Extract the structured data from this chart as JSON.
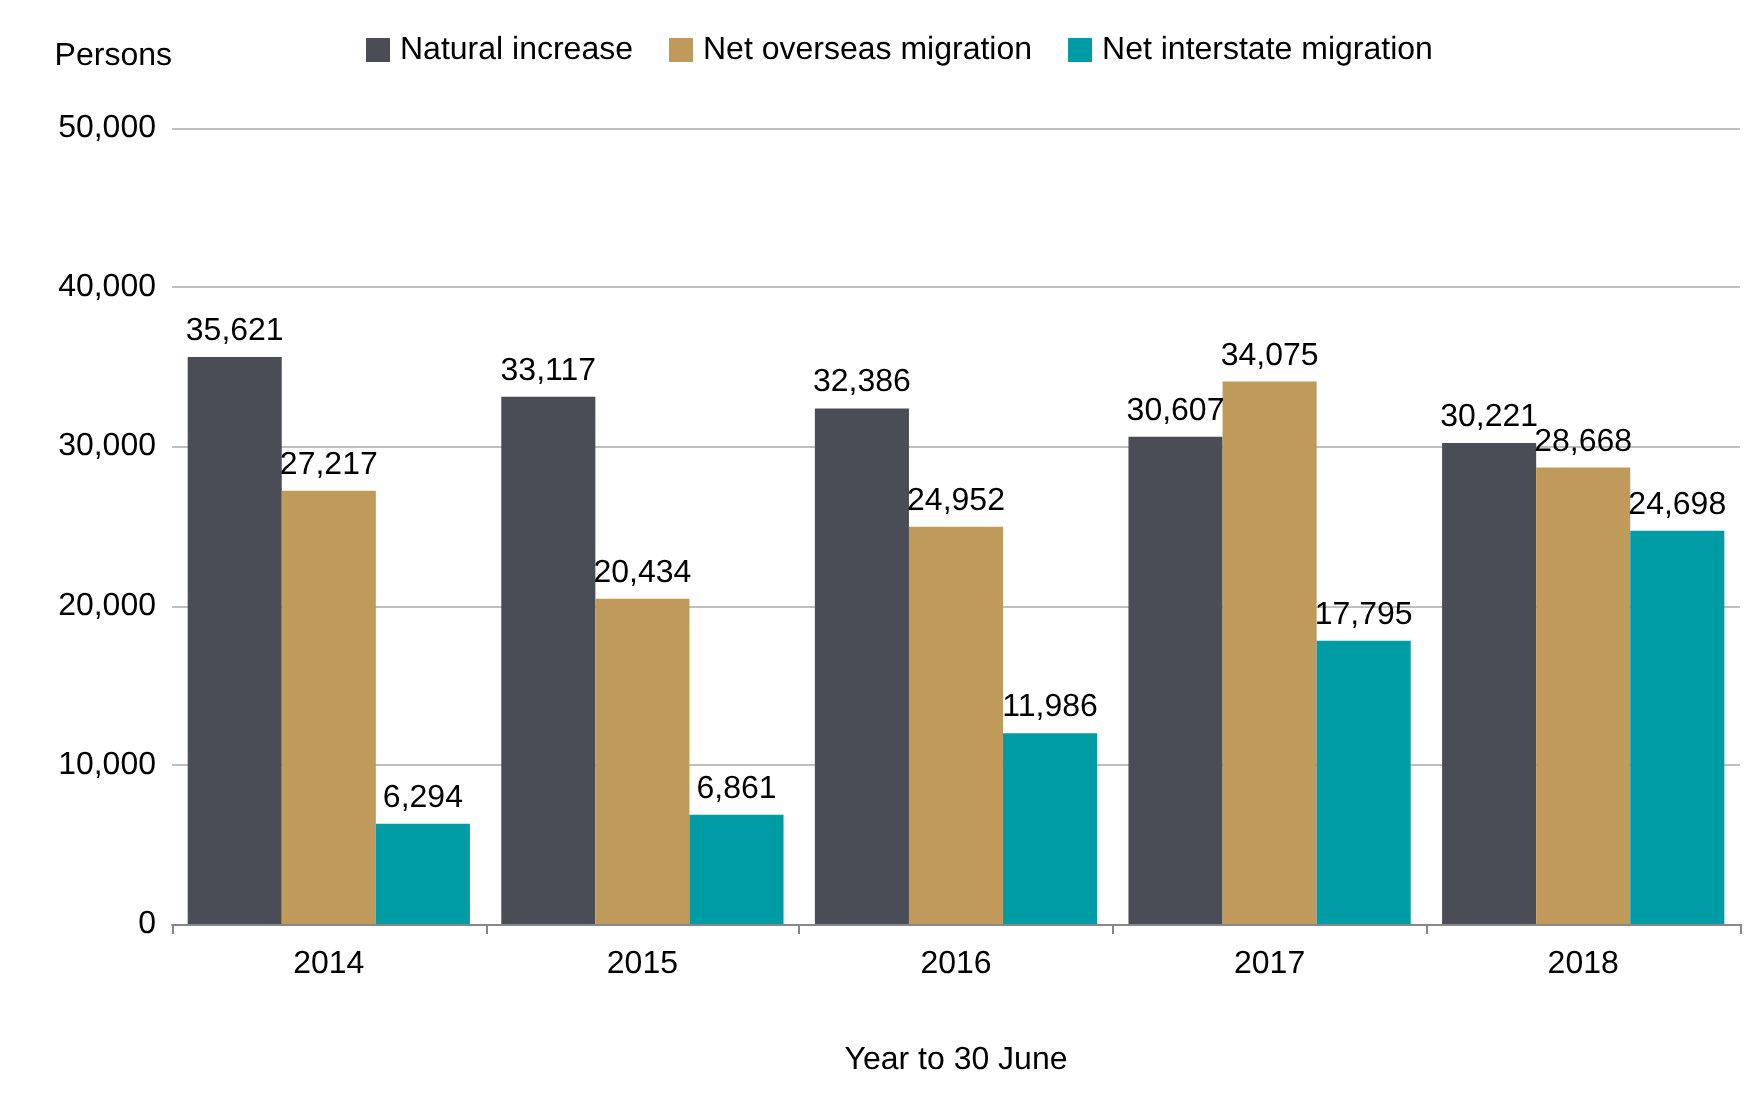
{
  "chart_data": {
    "type": "bar",
    "ylabel": "Persons",
    "xlabel": "Year to 30 June",
    "categories": [
      "2014",
      "2015",
      "2016",
      "2017",
      "2018"
    ],
    "series": [
      {
        "name": "Natural increase",
        "color": "#4a4d55",
        "values": [
          35621,
          33117,
          32386,
          30607,
          30221
        ],
        "value_labels": [
          "35,621",
          "33,117",
          "32,386",
          "30,607",
          "30,221"
        ]
      },
      {
        "name": "Net overseas migration",
        "color": "#c09a5b",
        "values": [
          27217,
          20434,
          24952,
          34075,
          28668
        ],
        "value_labels": [
          "27,217",
          "20,434",
          "24,952",
          "34,075",
          "28,668"
        ]
      },
      {
        "name": "Net interstate migration",
        "color": "#009ca6",
        "values": [
          6294,
          6861,
          11986,
          17795,
          24698
        ],
        "value_labels": [
          "6,294",
          "6,861",
          "11,986",
          "17,795",
          "24,698"
        ]
      }
    ],
    "ylim": [
      0,
      50000
    ],
    "yticks": [
      {
        "value": 0,
        "label": "0"
      },
      {
        "value": 10000,
        "label": "10,000"
      },
      {
        "value": 20000,
        "label": "20,000"
      },
      {
        "value": 30000,
        "label": "30,000"
      },
      {
        "value": 40000,
        "label": "40,000"
      },
      {
        "value": 50000,
        "label": "50,000"
      }
    ],
    "grid": "y",
    "legend": "top"
  }
}
